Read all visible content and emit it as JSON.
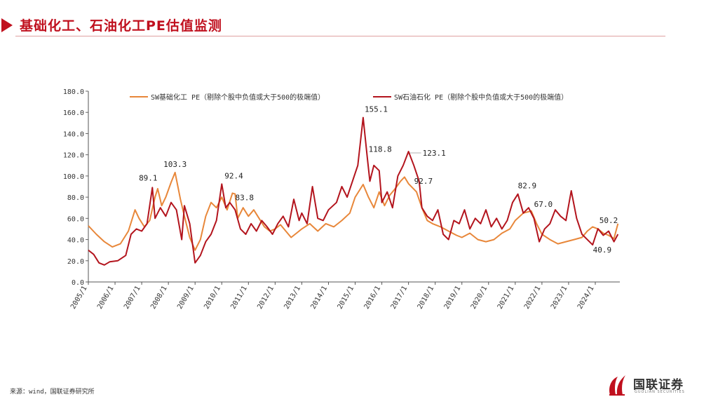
{
  "header": {
    "title": "基础化工、石油化工PE估值监测"
  },
  "chart_data": {
    "type": "line",
    "title": "",
    "xlabel": "",
    "ylabel": "",
    "ylim": [
      0,
      180
    ],
    "yticks": [
      "0.0",
      "20.0",
      "40.0",
      "60.0",
      "80.0",
      "100.0",
      "120.0",
      "140.0",
      "160.0",
      "180.0"
    ],
    "categories": [
      "2005/1",
      "2006/1",
      "2007/1",
      "2008/1",
      "2009/1",
      "2010/1",
      "2011/1",
      "2012/1",
      "2013/1",
      "2014/1",
      "2015/1",
      "2016/1",
      "2017/1",
      "2018/1",
      "2019/1",
      "2020/1",
      "2021/1",
      "2022/1",
      "2023/1",
      "2024/1"
    ],
    "x_end": "2024/12",
    "legend_position": "top",
    "series": [
      {
        "name": "SW基础化工 PE（剔除个股中负值或大于500的极端值）",
        "color": "#e8873a",
        "points": [
          [
            2005.0,
            53
          ],
          [
            2005.3,
            45
          ],
          [
            2005.6,
            38
          ],
          [
            2005.9,
            33
          ],
          [
            2006.2,
            36
          ],
          [
            2006.5,
            48
          ],
          [
            2006.75,
            68
          ],
          [
            2006.9,
            60
          ],
          [
            2007.1,
            52
          ],
          [
            2007.3,
            58
          ],
          [
            2007.5,
            80
          ],
          [
            2007.6,
            88
          ],
          [
            2007.75,
            72
          ],
          [
            2007.9,
            80
          ],
          [
            2008.1,
            94
          ],
          [
            2008.25,
            103.3
          ],
          [
            2008.45,
            78
          ],
          [
            2008.6,
            62
          ],
          [
            2008.8,
            42
          ],
          [
            2009.0,
            30
          ],
          [
            2009.2,
            40
          ],
          [
            2009.4,
            62
          ],
          [
            2009.6,
            75
          ],
          [
            2009.8,
            70
          ],
          [
            2010.0,
            80
          ],
          [
            2010.2,
            68
          ],
          [
            2010.4,
            83.8
          ],
          [
            2010.5,
            83
          ],
          [
            2010.6,
            60
          ],
          [
            2010.8,
            70
          ],
          [
            2011.0,
            62
          ],
          [
            2011.2,
            68
          ],
          [
            2011.4,
            60
          ],
          [
            2011.6,
            52
          ],
          [
            2011.8,
            48
          ],
          [
            2012.0,
            50
          ],
          [
            2012.2,
            54
          ],
          [
            2012.4,
            48
          ],
          [
            2012.6,
            42
          ],
          [
            2012.8,
            46
          ],
          [
            2013.0,
            50
          ],
          [
            2013.3,
            55
          ],
          [
            2013.6,
            48
          ],
          [
            2013.9,
            55
          ],
          [
            2014.2,
            52
          ],
          [
            2014.5,
            58
          ],
          [
            2014.8,
            65
          ],
          [
            2015.0,
            80
          ],
          [
            2015.3,
            92
          ],
          [
            2015.5,
            80
          ],
          [
            2015.7,
            70
          ],
          [
            2015.9,
            85
          ],
          [
            2016.1,
            72
          ],
          [
            2016.3,
            82
          ],
          [
            2016.5,
            88
          ],
          [
            2016.7,
            95
          ],
          [
            2016.85,
            99
          ],
          [
            2017.0,
            92.7
          ],
          [
            2017.3,
            85
          ],
          [
            2017.5,
            70
          ],
          [
            2017.7,
            58
          ],
          [
            2017.9,
            55
          ],
          [
            2018.2,
            52
          ],
          [
            2018.5,
            48
          ],
          [
            2018.8,
            44
          ],
          [
            2019.0,
            42
          ],
          [
            2019.3,
            46
          ],
          [
            2019.6,
            40
          ],
          [
            2019.9,
            38
          ],
          [
            2020.2,
            40
          ],
          [
            2020.5,
            46
          ],
          [
            2020.8,
            50
          ],
          [
            2021.0,
            58
          ],
          [
            2021.3,
            65
          ],
          [
            2021.6,
            67.0
          ],
          [
            2021.8,
            55
          ],
          [
            2022.0,
            45
          ],
          [
            2022.3,
            40
          ],
          [
            2022.6,
            36
          ],
          [
            2022.9,
            38
          ],
          [
            2023.2,
            40
          ],
          [
            2023.5,
            42
          ],
          [
            2023.7,
            48
          ],
          [
            2023.9,
            52
          ],
          [
            2024.1,
            50
          ],
          [
            2024.3,
            46
          ],
          [
            2024.5,
            44
          ],
          [
            2024.7,
            40.9
          ],
          [
            2024.85,
            55
          ]
        ]
      },
      {
        "name": "SW石油石化 PE（剔除个股中负值或大于500的极端值）",
        "color": "#b3141d",
        "points": [
          [
            2005.0,
            30
          ],
          [
            2005.2,
            26
          ],
          [
            2005.4,
            18
          ],
          [
            2005.6,
            16
          ],
          [
            2005.8,
            19
          ],
          [
            2006.1,
            20
          ],
          [
            2006.4,
            25
          ],
          [
            2006.6,
            45
          ],
          [
            2006.8,
            50
          ],
          [
            2007.0,
            48
          ],
          [
            2007.2,
            55
          ],
          [
            2007.4,
            89.1
          ],
          [
            2007.5,
            60
          ],
          [
            2007.7,
            70
          ],
          [
            2007.9,
            62
          ],
          [
            2008.1,
            75
          ],
          [
            2008.3,
            68
          ],
          [
            2008.5,
            40
          ],
          [
            2008.6,
            72
          ],
          [
            2008.8,
            55
          ],
          [
            2009.0,
            18
          ],
          [
            2009.2,
            25
          ],
          [
            2009.4,
            38
          ],
          [
            2009.6,
            45
          ],
          [
            2009.8,
            58
          ],
          [
            2010.0,
            92.4
          ],
          [
            2010.15,
            70
          ],
          [
            2010.3,
            75
          ],
          [
            2010.5,
            68
          ],
          [
            2010.7,
            50
          ],
          [
            2010.9,
            45
          ],
          [
            2011.1,
            55
          ],
          [
            2011.3,
            48
          ],
          [
            2011.5,
            58
          ],
          [
            2011.7,
            52
          ],
          [
            2011.9,
            45
          ],
          [
            2012.1,
            55
          ],
          [
            2012.3,
            62
          ],
          [
            2012.5,
            52
          ],
          [
            2012.7,
            78
          ],
          [
            2012.9,
            58
          ],
          [
            2013.0,
            65
          ],
          [
            2013.2,
            55
          ],
          [
            2013.4,
            90
          ],
          [
            2013.6,
            60
          ],
          [
            2013.8,
            58
          ],
          [
            2014.0,
            68
          ],
          [
            2014.3,
            75
          ],
          [
            2014.5,
            90
          ],
          [
            2014.7,
            80
          ],
          [
            2014.9,
            95
          ],
          [
            2015.1,
            110
          ],
          [
            2015.3,
            155.1
          ],
          [
            2015.45,
            118.8
          ],
          [
            2015.55,
            95
          ],
          [
            2015.7,
            110
          ],
          [
            2015.9,
            105
          ],
          [
            2016.0,
            75
          ],
          [
            2016.2,
            85
          ],
          [
            2016.4,
            70
          ],
          [
            2016.6,
            100
          ],
          [
            2016.8,
            110
          ],
          [
            2017.0,
            123.1
          ],
          [
            2017.2,
            110
          ],
          [
            2017.4,
            95
          ],
          [
            2017.5,
            70
          ],
          [
            2017.7,
            62
          ],
          [
            2017.9,
            58
          ],
          [
            2018.1,
            68
          ],
          [
            2018.3,
            45
          ],
          [
            2018.5,
            40
          ],
          [
            2018.7,
            58
          ],
          [
            2018.9,
            55
          ],
          [
            2019.1,
            68
          ],
          [
            2019.3,
            50
          ],
          [
            2019.5,
            60
          ],
          [
            2019.7,
            55
          ],
          [
            2019.9,
            68
          ],
          [
            2020.1,
            52
          ],
          [
            2020.3,
            60
          ],
          [
            2020.5,
            50
          ],
          [
            2020.7,
            58
          ],
          [
            2020.9,
            75
          ],
          [
            2021.1,
            82.9
          ],
          [
            2021.3,
            65
          ],
          [
            2021.5,
            70
          ],
          [
            2021.7,
            60
          ],
          [
            2021.9,
            38
          ],
          [
            2022.1,
            50
          ],
          [
            2022.3,
            55
          ],
          [
            2022.5,
            68
          ],
          [
            2022.7,
            62
          ],
          [
            2022.9,
            58
          ],
          [
            2023.1,
            86
          ],
          [
            2023.3,
            60
          ],
          [
            2023.5,
            45
          ],
          [
            2023.7,
            40
          ],
          [
            2023.9,
            35
          ],
          [
            2024.1,
            50.2
          ],
          [
            2024.3,
            44
          ],
          [
            2024.5,
            48
          ],
          [
            2024.7,
            38
          ],
          [
            2024.85,
            45
          ]
        ]
      }
    ],
    "annotations": [
      {
        "text": "89.1",
        "x": 2007.4,
        "y": 89.1
      },
      {
        "text": "103.3",
        "x": 2008.25,
        "y": 103.3
      },
      {
        "text": "92.4",
        "x": 2010.0,
        "y": 92.4
      },
      {
        "text": "83.8",
        "x": 2010.4,
        "y": 83.8
      },
      {
        "text": "155.1",
        "x": 2015.3,
        "y": 155.1
      },
      {
        "text": "118.8",
        "x": 2015.45,
        "y": 118.8
      },
      {
        "text": "123.1",
        "x": 2017.0,
        "y": 123.1
      },
      {
        "text": "92.7",
        "x": 2017.0,
        "y": 92.7
      },
      {
        "text": "82.9",
        "x": 2021.1,
        "y": 82.9
      },
      {
        "text": "67.0",
        "x": 2021.6,
        "y": 67.0
      },
      {
        "text": "50.2",
        "x": 2024.1,
        "y": 50.2
      },
      {
        "text": "40.9",
        "x": 2024.7,
        "y": 40.9
      }
    ]
  },
  "footer": {
    "source": "来源：wind，国联证券研究所",
    "logo_text": "国联证券",
    "logo_sub": "GUOLIAN SECURITIES"
  }
}
